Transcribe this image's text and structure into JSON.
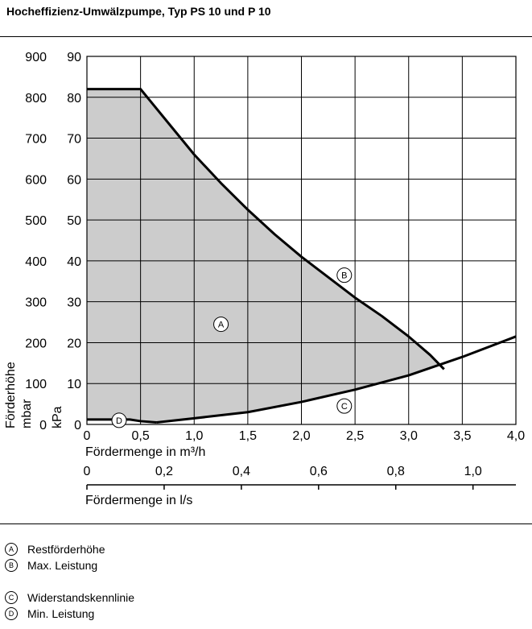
{
  "title": "Hocheffizienz-Umwälzpumpe, Typ PS 10 und P 10",
  "chart_data": {
    "type": "line",
    "x_axis": {
      "label": "Fördermenge in m³/h",
      "range": [
        0,
        4.0
      ],
      "ticks": [
        0,
        0.5,
        1.0,
        1.5,
        2.0,
        2.5,
        3.0,
        3.5,
        4.0
      ],
      "tick_labels": [
        "0",
        "0,5",
        "1,0",
        "1,5",
        "2,0",
        "2,5",
        "3,0",
        "3,5",
        "4,0"
      ]
    },
    "x2_axis": {
      "label": "Fördermenge in l/s",
      "ticks": [
        0,
        0.2,
        0.4,
        0.6,
        0.8,
        1.0
      ],
      "tick_labels": [
        "0",
        "0,2",
        "0,4",
        "0,6",
        "0,8",
        "1,0"
      ]
    },
    "y_axis": {
      "label": "Förderhöhe",
      "range": [
        0,
        900
      ],
      "units": [
        "mbar",
        "kPa"
      ],
      "mbar_tick_labels": [
        "0",
        "100",
        "200",
        "300",
        "400",
        "500",
        "600",
        "700",
        "800",
        "900"
      ],
      "kpa_tick_labels": [
        "0",
        "10",
        "20",
        "30",
        "40",
        "50",
        "60",
        "70",
        "80",
        "90"
      ]
    },
    "grid": true,
    "series": [
      {
        "marker": "B",
        "x": [
          0,
          0.5,
          0.75,
          1.0,
          1.25,
          1.5,
          1.75,
          2.0,
          2.25,
          2.5,
          2.75,
          3.0,
          3.2,
          3.33
        ],
        "y": [
          820,
          820,
          740,
          660,
          590,
          525,
          465,
          410,
          360,
          310,
          265,
          215,
          170,
          135
        ]
      },
      {
        "marker": "C",
        "x": [
          0.65,
          1.0,
          1.5,
          2.0,
          2.5,
          3.0,
          3.5,
          4.0
        ],
        "y": [
          5,
          15,
          30,
          55,
          85,
          120,
          165,
          215
        ]
      },
      {
        "marker": "D",
        "x": [
          0,
          0.4,
          0.5,
          0.65
        ],
        "y": [
          12,
          12,
          8,
          5
        ]
      }
    ],
    "region": {
      "marker": "A"
    }
  },
  "legend": [
    {
      "marker": "A",
      "label": "Restförderhöhe"
    },
    {
      "marker": "B",
      "label": "Max. Leistung"
    },
    {
      "marker": "C",
      "label": "Widerstandskennlinie"
    },
    {
      "marker": "D",
      "label": "Min. Leistung"
    }
  ]
}
